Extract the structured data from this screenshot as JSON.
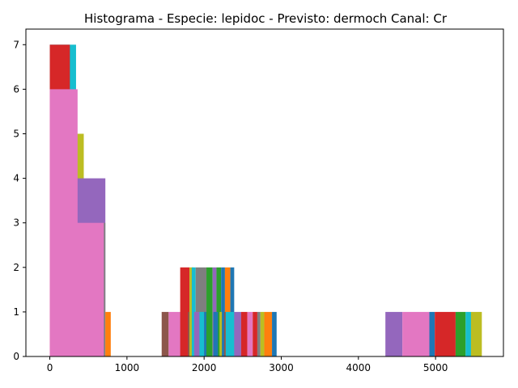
{
  "chart_data": {
    "type": "bar",
    "title": "Histograma - Especie: lepidoc - Previsto: dermoch Canal: Cr",
    "xlabel": "",
    "ylabel": "",
    "xlim": [
      -310,
      5880
    ],
    "ylim": [
      0,
      7.35
    ],
    "xticks": [
      0,
      1000,
      2000,
      3000,
      4000,
      5000
    ],
    "yticks": [
      0,
      1,
      2,
      3,
      4,
      5,
      6,
      7
    ],
    "grid": false,
    "legend": "none",
    "bars": [
      {
        "x0": 0,
        "x1": 340,
        "h": 7,
        "color": "#17becf"
      },
      {
        "x0": 0,
        "x1": 260,
        "h": 7,
        "color": "#d62728"
      },
      {
        "x0": 350,
        "x1": 440,
        "h": 5,
        "color": "#bcbd22"
      },
      {
        "x0": 350,
        "x1": 720,
        "h": 4,
        "color": "#9467bd"
      },
      {
        "x0": 700,
        "x1": 720,
        "h": 3,
        "color": "#7f7f7f"
      },
      {
        "x0": 720,
        "x1": 790,
        "h": 1,
        "color": "#ff7f0e"
      },
      {
        "x0": 0,
        "x1": 360,
        "h": 6,
        "color": "#e377c2"
      },
      {
        "x0": 350,
        "x1": 700,
        "h": 3,
        "color": "#e377c2"
      },
      {
        "x0": 1450,
        "x1": 1540,
        "h": 1,
        "color": "#8c564b"
      },
      {
        "x0": 1540,
        "x1": 1780,
        "h": 1,
        "color": "#e377c2"
      },
      {
        "x0": 1690,
        "x1": 1810,
        "h": 2,
        "color": "#d62728"
      },
      {
        "x0": 1790,
        "x1": 1840,
        "h": 1,
        "color": "#8c564b"
      },
      {
        "x0": 1810,
        "x1": 1860,
        "h": 2,
        "color": "#bcbd22"
      },
      {
        "x0": 1840,
        "x1": 1890,
        "h": 2,
        "color": "#17becf"
      },
      {
        "x0": 1890,
        "x1": 2030,
        "h": 2,
        "color": "#7f7f7f"
      },
      {
        "x0": 1870,
        "x1": 1940,
        "h": 1,
        "color": "#9467bd"
      },
      {
        "x0": 1940,
        "x1": 2000,
        "h": 1,
        "color": "#17becf"
      },
      {
        "x0": 2000,
        "x1": 2060,
        "h": 1,
        "color": "#1f77b4"
      },
      {
        "x0": 2030,
        "x1": 2110,
        "h": 2,
        "color": "#2ca02c"
      },
      {
        "x0": 2110,
        "x1": 2160,
        "h": 2,
        "color": "#9467bd"
      },
      {
        "x0": 2160,
        "x1": 2220,
        "h": 2,
        "color": "#2ca02c"
      },
      {
        "x0": 2220,
        "x1": 2270,
        "h": 2,
        "color": "#1f77b4"
      },
      {
        "x0": 2270,
        "x1": 2340,
        "h": 2,
        "color": "#ff7f0e"
      },
      {
        "x0": 2340,
        "x1": 2390,
        "h": 2,
        "color": "#1f77b4"
      },
      {
        "x0": 2120,
        "x1": 2180,
        "h": 1,
        "color": "#1f77b4"
      },
      {
        "x0": 2200,
        "x1": 2230,
        "h": 1,
        "color": "#bcbd22"
      },
      {
        "x0": 2260,
        "x1": 2280,
        "h": 1,
        "color": "#8c564b"
      },
      {
        "x0": 2280,
        "x1": 2390,
        "h": 1,
        "color": "#17becf"
      },
      {
        "x0": 2390,
        "x1": 2480,
        "h": 1,
        "color": "#9467bd"
      },
      {
        "x0": 2480,
        "x1": 2560,
        "h": 1,
        "color": "#d62728"
      },
      {
        "x0": 2560,
        "x1": 2630,
        "h": 1,
        "color": "#e377c2"
      },
      {
        "x0": 2630,
        "x1": 2690,
        "h": 1,
        "color": "#d62728"
      },
      {
        "x0": 2690,
        "x1": 2730,
        "h": 1,
        "color": "#7f7f7f"
      },
      {
        "x0": 2730,
        "x1": 2780,
        "h": 1,
        "color": "#bcbd22"
      },
      {
        "x0": 2780,
        "x1": 2880,
        "h": 1,
        "color": "#ff7f0e"
      },
      {
        "x0": 2880,
        "x1": 2940,
        "h": 1,
        "color": "#1f77b4"
      },
      {
        "x0": 4350,
        "x1": 4570,
        "h": 1,
        "color": "#9467bd"
      },
      {
        "x0": 4570,
        "x1": 4920,
        "h": 1,
        "color": "#e377c2"
      },
      {
        "x0": 4920,
        "x1": 4990,
        "h": 1,
        "color": "#1f77b4"
      },
      {
        "x0": 4990,
        "x1": 5260,
        "h": 1,
        "color": "#d62728"
      },
      {
        "x0": 5260,
        "x1": 5390,
        "h": 1,
        "color": "#2ca02c"
      },
      {
        "x0": 5390,
        "x1": 5460,
        "h": 1,
        "color": "#17becf"
      },
      {
        "x0": 5460,
        "x1": 5600,
        "h": 1,
        "color": "#bcbd22"
      }
    ]
  }
}
